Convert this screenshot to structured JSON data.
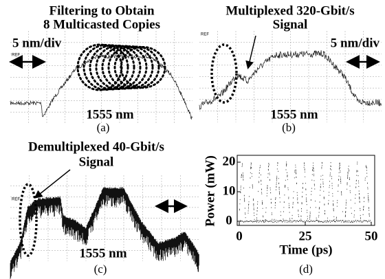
{
  "panels": [
    {
      "title_lines": [
        "Filtering to Obtain",
        "8 Multicasted Copies"
      ],
      "scale": "5 nm/div",
      "ref": "REF",
      "center": "1555 nm",
      "caption": "(a)"
    },
    {
      "title_lines": [
        "Multiplexed 320-Gbit/s",
        "Signal"
      ],
      "scale": "5 nm/div",
      "ref": "REF",
      "center": "1555 nm",
      "caption": "(b)"
    },
    {
      "title_lines": [
        "Demultiplexed 40-Gbit/s",
        "Signal"
      ],
      "ref": "REF",
      "center": "1555 nm",
      "caption": "(c)"
    },
    {
      "y_label": "Power (mW)",
      "x_label": "Time (ps)",
      "yticks": [
        0,
        10,
        20
      ],
      "xticks": [
        0,
        25,
        50
      ],
      "caption": "(d)"
    }
  ]
}
